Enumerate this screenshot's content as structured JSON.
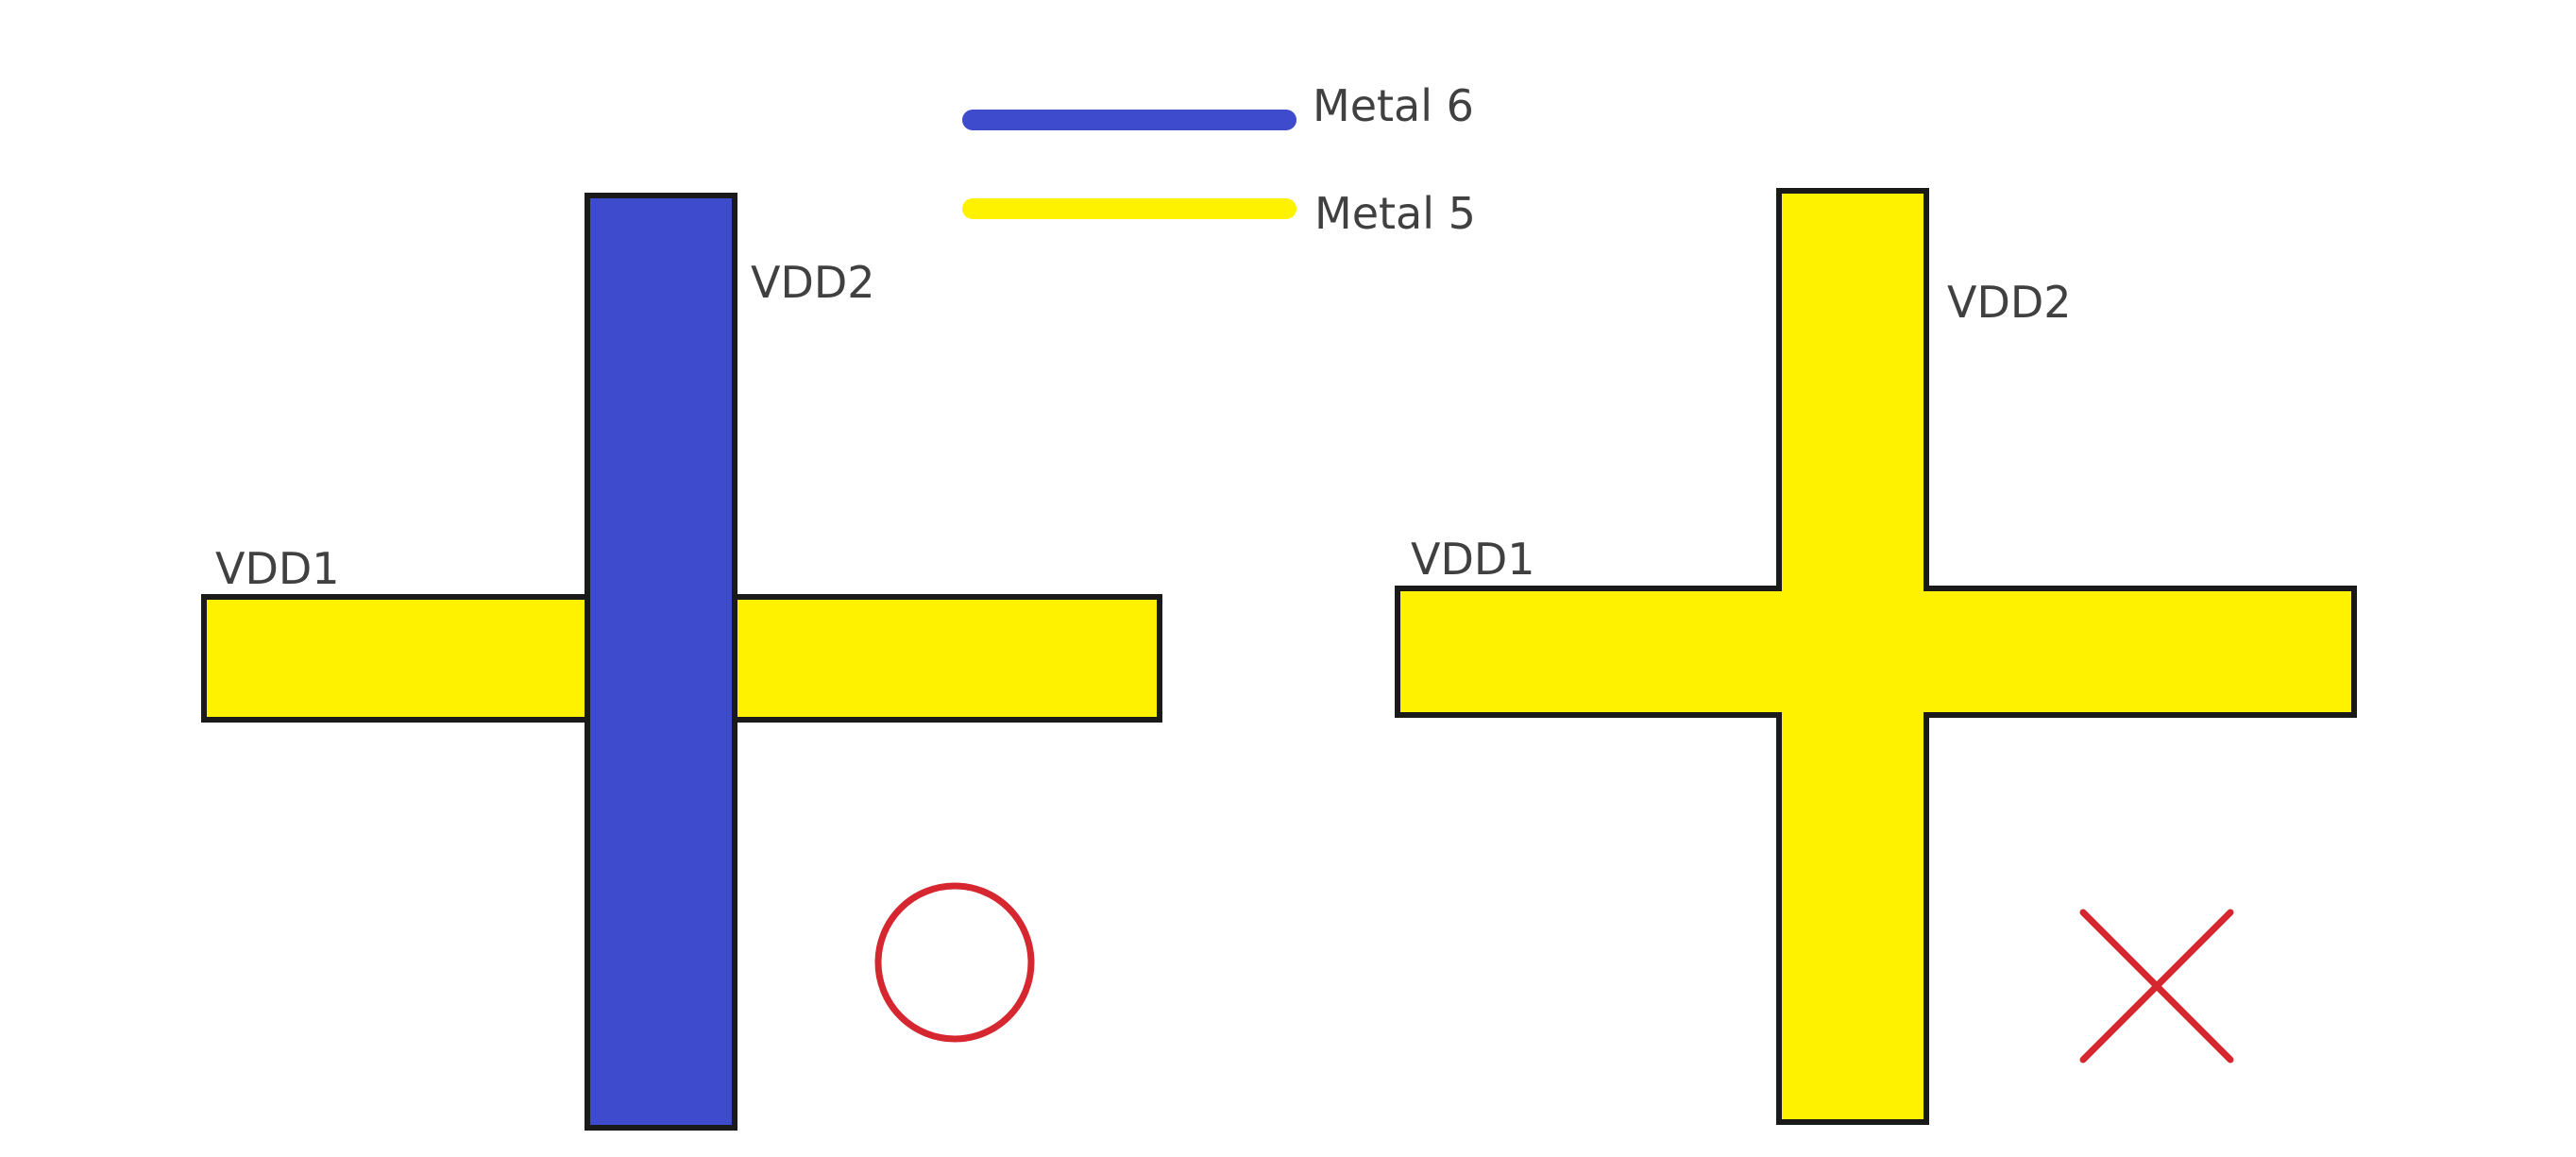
{
  "legend": {
    "items": [
      {
        "label": "Metal 6",
        "color": "#3d4bcc"
      },
      {
        "label": "Metal 5",
        "color": "#fff200"
      }
    ]
  },
  "left_diagram": {
    "vertical_label": "VDD2",
    "horizontal_label": "VDD1",
    "vertical_color": "#3d4bcc",
    "horizontal_color": "#fff200",
    "mark": "circle-icon",
    "mark_color": "#d6262f"
  },
  "right_diagram": {
    "vertical_label": "VDD2",
    "horizontal_label": "VDD1",
    "fill_color": "#fff200",
    "mark": "x-icon",
    "mark_color": "#d6262f"
  },
  "outline_color": "#1a1a1a"
}
